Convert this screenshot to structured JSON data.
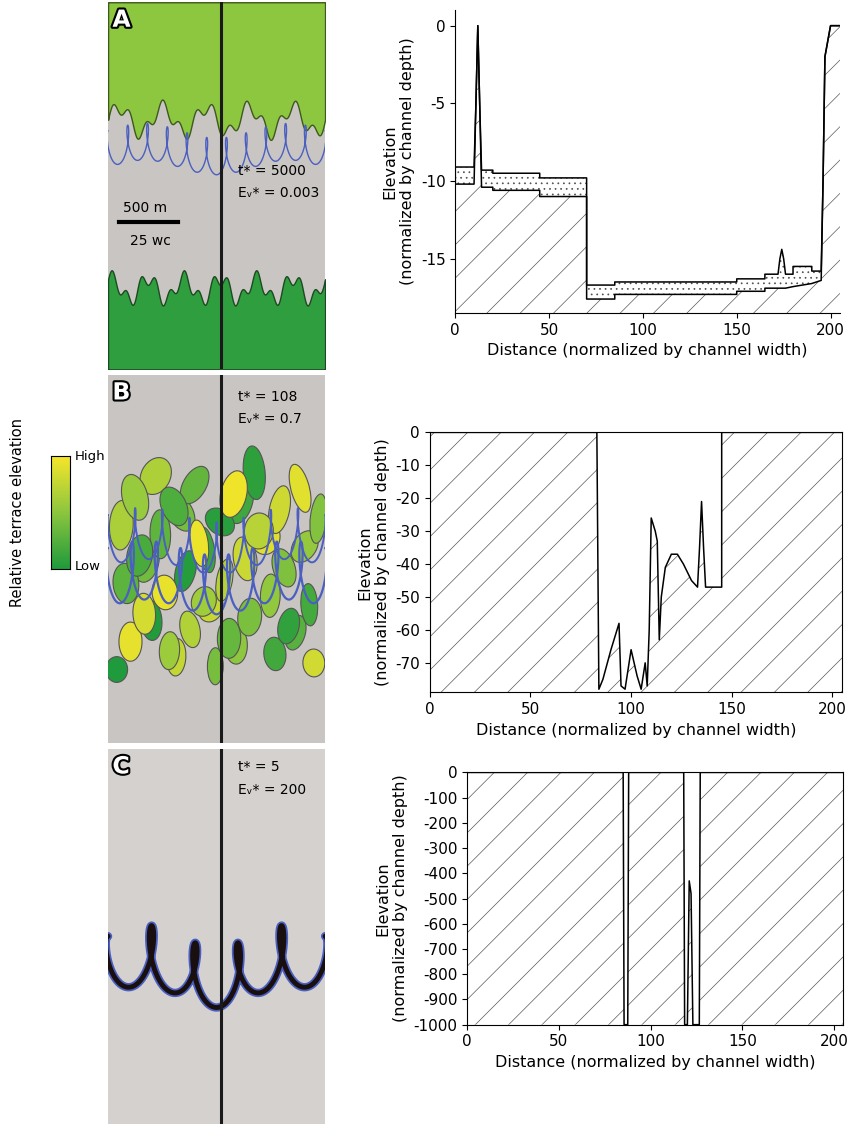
{
  "colorbar": {
    "title": "Relative terrace elevation",
    "high": "High",
    "low": "Low"
  },
  "maps": [
    {
      "label": "A",
      "texts": [
        "t* = 5000",
        "Eᵥ* = 0.003"
      ],
      "scale_bar": [
        "500 m",
        "25 wc"
      ]
    },
    {
      "label": "B",
      "texts": [
        "t* = 108",
        "Eᵥ* = 0.7"
      ]
    },
    {
      "label": "C",
      "texts": [
        "t* = 5",
        "Eᵥ* = 200"
      ]
    }
  ],
  "chart_data": [
    {
      "type": "line",
      "xlabel": "Distance (normalized by channel width)",
      "ylabel": "Elevation\n(normalized by channel depth)",
      "xlim": [
        0,
        205
      ],
      "xticks": [
        0,
        50,
        100,
        150,
        200
      ],
      "ylim": [
        -18.5,
        1
      ],
      "yticks": [
        -15,
        -10,
        -5,
        0
      ],
      "x": [
        0,
        0,
        10,
        11,
        12,
        13,
        14,
        20,
        20,
        45,
        45,
        70,
        70,
        85,
        85,
        150,
        150,
        165,
        165,
        172,
        173,
        174,
        175,
        176,
        180,
        180,
        190,
        190,
        195,
        196,
        197,
        200,
        205
      ],
      "series": [
        {
          "values": [
            -10,
            -9.1,
            -9.1,
            -5,
            0,
            -5,
            -9.3,
            -9.3,
            -9.5,
            -9.5,
            -9.8,
            -9.8,
            -16.7,
            -16.7,
            -16.5,
            -16.5,
            -16.3,
            -16.3,
            -16.0,
            -16.0,
            -15.0,
            -14.4,
            -15.0,
            -16.0,
            -16.0,
            -15.5,
            -15.5,
            -15.8,
            -15.8,
            -10,
            -2,
            0,
            0
          ]
        },
        {
          "values": [
            -10,
            -10.2,
            -10.2,
            -5,
            0,
            -5,
            -10.4,
            -10.4,
            -10.6,
            -10.6,
            -11.0,
            -11.0,
            -17.6,
            -17.6,
            -17.3,
            -17.3,
            -17.1,
            -17.1,
            -16.9,
            -16.9,
            -16.9,
            -16.9,
            -16.9,
            -16.9,
            -16.8,
            -16.8,
            -16.6,
            -16.6,
            -16.4,
            -10,
            -2,
            0,
            0
          ]
        }
      ]
    },
    {
      "type": "line",
      "xlabel": "Distance (normalized by channel width)",
      "ylabel": "Elevation\n(normalized by channel depth)",
      "xlim": [
        0,
        205
      ],
      "xticks": [
        0,
        50,
        100,
        150,
        200
      ],
      "ylim": [
        -79,
        0
      ],
      "yticks": [
        -70,
        -60,
        -50,
        -40,
        -30,
        -20,
        -10,
        0
      ],
      "x": [
        0,
        83,
        84,
        86,
        90,
        94,
        95,
        97,
        100,
        103,
        105,
        107,
        108,
        109,
        110,
        112,
        113,
        114,
        115,
        117,
        120,
        123,
        126,
        130,
        133,
        134,
        135,
        136,
        137,
        140,
        145,
        145,
        205
      ],
      "series": [
        {
          "values": [
            0,
            0,
            -78,
            -75,
            -66,
            -58,
            -77,
            -78,
            -66,
            -74,
            -78,
            -70,
            -77,
            -60,
            -26,
            -30,
            -33,
            -63,
            -50,
            -41,
            -37,
            -37,
            -40,
            -45,
            -47,
            -35,
            -21,
            -35,
            -47,
            -47,
            -47,
            0,
            0
          ]
        }
      ]
    },
    {
      "type": "line",
      "xlabel": "Distance (normalized by channel width)",
      "ylabel": "Elevation\n(normalized by channel depth)",
      "xlim": [
        0,
        205
      ],
      "xticks": [
        0,
        50,
        100,
        150,
        200
      ],
      "ylim": [
        -1000,
        0
      ],
      "yticks": [
        -1000,
        -900,
        -800,
        -700,
        -600,
        -500,
        -400,
        -300,
        -200,
        -100,
        0
      ],
      "x": [
        0,
        85,
        85.5,
        87.5,
        88,
        118,
        118.5,
        120,
        121,
        122,
        123,
        126.5,
        127,
        205
      ],
      "series": [
        {
          "values": [
            0,
            0,
            -1000,
            -1000,
            0,
            0,
            -1000,
            -1000,
            -430,
            -480,
            -1000,
            -1000,
            0,
            0
          ]
        }
      ]
    }
  ]
}
